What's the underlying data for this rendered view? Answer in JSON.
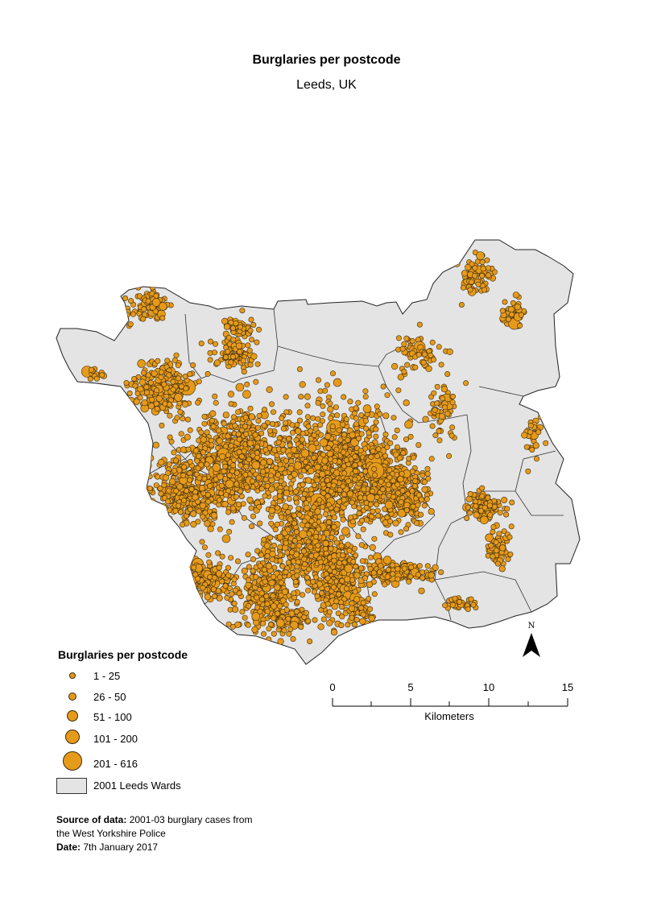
{
  "title": "Burglaries per postcode",
  "subtitle": "Leeds, UK",
  "legend": {
    "title": "Burglaries per postcode",
    "classes": [
      {
        "label": "1 - 25"
      },
      {
        "label": "26 - 50"
      },
      {
        "label": "51 - 100"
      },
      {
        "label": "101 - 200"
      },
      {
        "label": "201 - 616"
      }
    ],
    "wards_label": "2001 Leeds Wards"
  },
  "colors": {
    "point_fill": "#e69a1a",
    "point_stroke": "#3a2a10",
    "ward_fill": "#e4e4e4",
    "ward_stroke": "#222222"
  },
  "scale": {
    "ticks": [
      "0",
      "5",
      "10",
      "15"
    ],
    "unit": "Kilometers"
  },
  "north_label": "N",
  "source": {
    "label": "Source of data:",
    "text_line1": " 2001-03 burglary cases from",
    "text_line2": "the West Yorkshire Police",
    "date_label": "Date:",
    "date_value": " 7th January 2017"
  }
}
